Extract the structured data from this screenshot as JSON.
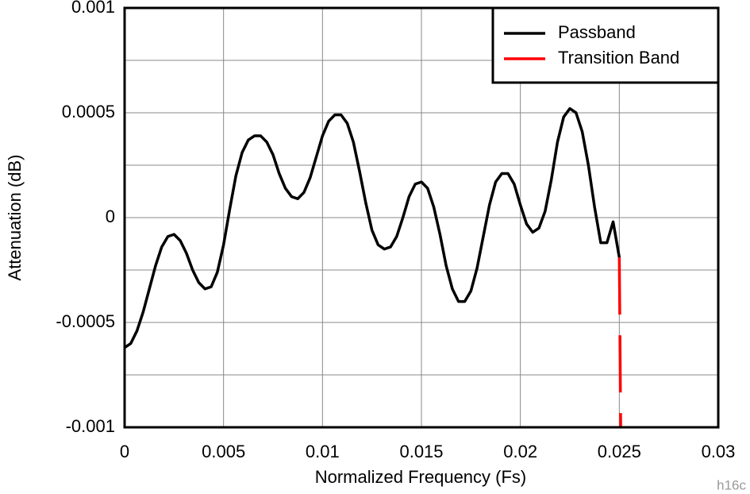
{
  "chart_data": {
    "type": "line",
    "xlabel": "Normalized Frequency (Fs)",
    "ylabel": "Attenuation (dB)",
    "xlim": [
      0,
      0.03
    ],
    "xticks": [
      0,
      0.005,
      0.01,
      0.015,
      0.02,
      0.025,
      0.03
    ],
    "ylim": [
      -0.001,
      0.001
    ],
    "yticks": [
      -0.001,
      -0.0005,
      0,
      0.0005,
      0.001
    ],
    "y_minor_grid": [
      -0.00075,
      -0.00025,
      0.00025,
      0.00075
    ],
    "grid": true,
    "legend": "upper right",
    "footnote": "h16c",
    "series": [
      {
        "name": "Passband",
        "color": "#000000",
        "dashed": false,
        "x": [
          0,
          0.0003125,
          0.000625,
          0.0009375,
          0.00125,
          0.0015625,
          0.001875,
          0.0021875,
          0.0025,
          0.0028125,
          0.003125,
          0.0034375,
          0.00375,
          0.0040625,
          0.004375,
          0.0046875,
          0.005,
          0.0053125,
          0.005625,
          0.0059375,
          0.00625,
          0.0065625,
          0.006875,
          0.0071875,
          0.0075,
          0.0078125,
          0.008125,
          0.0084375,
          0.00875,
          0.0090625,
          0.009375,
          0.0096875,
          0.01,
          0.0103125,
          0.010625,
          0.0109375,
          0.01125,
          0.0115625,
          0.011875,
          0.0121875,
          0.0125,
          0.0128125,
          0.013125,
          0.0134375,
          0.01375,
          0.0140625,
          0.014375,
          0.0146875,
          0.015,
          0.0153125,
          0.015625,
          0.0159375,
          0.01625,
          0.0165625,
          0.016875,
          0.0171875,
          0.0175,
          0.0178125,
          0.018125,
          0.0184375,
          0.01875,
          0.0190625,
          0.019375,
          0.0196875,
          0.02,
          0.0203125,
          0.020625,
          0.0209375,
          0.02125,
          0.0215625,
          0.021875,
          0.0221875,
          0.0225,
          0.0228125,
          0.023125,
          0.0234375,
          0.02375,
          0.0240625,
          0.024375,
          0.0246875,
          0.025
        ],
        "values": [
          -0.00062,
          -0.0006,
          -0.00054,
          -0.00045,
          -0.00034,
          -0.00023,
          -0.00014,
          -9e-05,
          -8e-05,
          -0.00011,
          -0.00017,
          -0.00025,
          -0.00031,
          -0.00034,
          -0.00033,
          -0.00026,
          -0.00013,
          4e-05,
          0.0002,
          0.00031,
          0.00037,
          0.00039,
          0.00039,
          0.00036,
          0.0003,
          0.00021,
          0.00014,
          0.0001,
          9e-05,
          0.00012,
          0.00019,
          0.00029,
          0.00039,
          0.00046,
          0.00049,
          0.00049,
          0.00045,
          0.00036,
          0.00022,
          7e-05,
          -6e-05,
          -0.00013,
          -0.00015,
          -0.00014,
          -9e-05,
          0,
          0.0001,
          0.00016,
          0.00017,
          0.00014,
          5e-05,
          -8e-05,
          -0.00023,
          -0.00034,
          -0.0004,
          -0.0004,
          -0.00035,
          -0.00024,
          -9e-05,
          6e-05,
          0.00017,
          0.00021,
          0.00021,
          0.00016,
          6e-05,
          -3e-05,
          -7e-05,
          -5e-05,
          3e-05,
          0.00018,
          0.00036,
          0.00048,
          0.00052,
          0.0005,
          0.00041,
          0.00025,
          5e-05,
          -0.00012,
          -0.00012,
          -2e-05,
          -0.00019
        ]
      },
      {
        "name": "Transition Band",
        "color": "#ff0000",
        "dashed": true,
        "x": [
          0.025,
          0.02507
        ],
        "values": [
          -0.00019,
          -0.001
        ]
      }
    ]
  }
}
